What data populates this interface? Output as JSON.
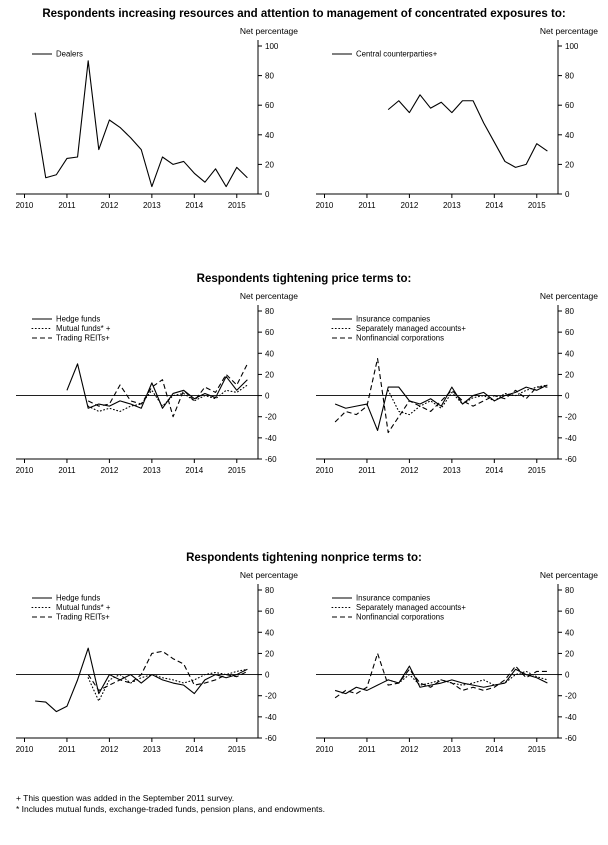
{
  "page": {
    "title1": "Respondents increasing resources and attention to management of concentrated exposures to:",
    "title2": "Respondents tightening price terms to:",
    "title3": "Respondents tightening nonprice terms to:",
    "footnote1": "+ This question was added in the September 2011 survey.",
    "footnote2": "* Includes mutual funds, exchange-traded funds, pension plans, and endowments.",
    "line_color": "#000000"
  },
  "chart_data": [
    {
      "type": "line",
      "title": "",
      "ylabel": "Net percentage",
      "ylim": [
        0,
        100
      ],
      "yticks": [
        0,
        20,
        40,
        60,
        80,
        100
      ],
      "xlim": [
        2009.8,
        2015.5
      ],
      "xticks": [
        2010,
        2011,
        2012,
        2013,
        2014,
        2015
      ],
      "zero_line": false,
      "x_step": 0.25,
      "series": [
        {
          "name": "Dealers",
          "style": "solid",
          "x_start": 2010.25,
          "values": [
            55,
            11,
            13,
            24,
            25,
            90,
            30,
            50,
            45,
            38,
            30,
            5,
            25,
            20,
            22,
            14,
            8,
            17,
            5,
            18,
            11
          ]
        }
      ]
    },
    {
      "type": "line",
      "title": "",
      "ylabel": "Net percentage",
      "ylim": [
        0,
        100
      ],
      "yticks": [
        0,
        20,
        40,
        60,
        80,
        100
      ],
      "xlim": [
        2009.8,
        2015.5
      ],
      "xticks": [
        2010,
        2011,
        2012,
        2013,
        2014,
        2015
      ],
      "zero_line": false,
      "x_step": 0.25,
      "series": [
        {
          "name": "Central counterparties+",
          "style": "solid",
          "x_start": 2011.5,
          "values": [
            57,
            63,
            55,
            67,
            58,
            62,
            55,
            63,
            63,
            48,
            35,
            22,
            18,
            20,
            34,
            29
          ]
        }
      ]
    },
    {
      "type": "line",
      "title": "",
      "ylabel": "Net percentage",
      "ylim": [
        -60,
        80
      ],
      "yticks": [
        -60,
        -40,
        -20,
        0,
        20,
        40,
        60,
        80
      ],
      "xlim": [
        2009.8,
        2015.5
      ],
      "xticks": [
        2010,
        2011,
        2012,
        2013,
        2014,
        2015
      ],
      "zero_line": true,
      "x_step": 0.25,
      "series": [
        {
          "name": "Hedge funds",
          "style": "solid",
          "x_start": 2011.0,
          "values": [
            5,
            30,
            -12,
            -8,
            -10,
            -5,
            -8,
            -12,
            12,
            -12,
            2,
            5,
            -3,
            2,
            -2,
            18,
            5,
            15
          ]
        },
        {
          "name": "Mutual funds* +",
          "style": "dotted",
          "x_start": 2011.5,
          "values": [
            -10,
            -15,
            -12,
            -15,
            -10,
            -8,
            5,
            -10,
            0,
            2,
            -5,
            0,
            -3,
            5,
            3,
            10
          ]
        },
        {
          "name": "Trading REITs+",
          "style": "dashed",
          "x_start": 2011.5,
          "values": [
            -5,
            -10,
            -8,
            10,
            -5,
            -8,
            8,
            15,
            -20,
            5,
            -5,
            8,
            3,
            20,
            10,
            30
          ]
        }
      ]
    },
    {
      "type": "line",
      "title": "",
      "ylabel": "Net percentage",
      "ylim": [
        -60,
        80
      ],
      "yticks": [
        -60,
        -40,
        -20,
        0,
        20,
        40,
        60,
        80
      ],
      "xlim": [
        2009.8,
        2015.5
      ],
      "xticks": [
        2010,
        2011,
        2012,
        2013,
        2014,
        2015
      ],
      "zero_line": true,
      "x_step": 0.25,
      "series": [
        {
          "name": "Insurance companies",
          "style": "solid",
          "x_start": 2010.25,
          "values": [
            -8,
            -12,
            -10,
            -8,
            -33,
            8,
            8,
            -5,
            -8,
            -3,
            -10,
            8,
            -8,
            0,
            3,
            -5,
            0,
            3,
            8,
            5,
            10
          ]
        },
        {
          "name": "Separately managed accounts+",
          "style": "dotted",
          "x_start": 2011.5,
          "values": [
            5,
            -15,
            -18,
            -10,
            -5,
            -12,
            3,
            -8,
            -2,
            0,
            -5,
            2,
            0,
            5,
            8,
            10
          ]
        },
        {
          "name": "Nonfinancial corporations",
          "style": "dashed",
          "x_start": 2010.25,
          "values": [
            -25,
            -15,
            -18,
            -10,
            35,
            -35,
            -20,
            -5,
            -10,
            -15,
            -5,
            5,
            -5,
            -10,
            -5,
            0,
            -3,
            5,
            -3,
            8,
            8
          ]
        }
      ]
    },
    {
      "type": "line",
      "title": "",
      "ylabel": "Net percentage",
      "ylim": [
        -60,
        80
      ],
      "yticks": [
        -60,
        -40,
        -20,
        0,
        20,
        40,
        60,
        80
      ],
      "xlim": [
        2009.8,
        2015.5
      ],
      "xticks": [
        2010,
        2011,
        2012,
        2013,
        2014,
        2015
      ],
      "zero_line": true,
      "x_step": 0.25,
      "series": [
        {
          "name": "Hedge funds",
          "style": "solid",
          "x_start": 2010.25,
          "values": [
            -25,
            -26,
            -35,
            -30,
            -5,
            25,
            -18,
            0,
            -5,
            0,
            -8,
            0,
            -5,
            -8,
            -10,
            -18,
            -5,
            0,
            -3,
            0,
            5
          ]
        },
        {
          "name": "Mutual funds* +",
          "style": "dotted",
          "x_start": 2011.5,
          "values": [
            -3,
            -25,
            -5,
            0,
            -8,
            -3,
            0,
            -3,
            -5,
            -8,
            -5,
            0,
            2,
            0,
            3,
            5
          ]
        },
        {
          "name": "Trading REITs+",
          "style": "dashed",
          "x_start": 2011.5,
          "values": [
            0,
            -15,
            -10,
            -5,
            -8,
            0,
            20,
            22,
            15,
            10,
            -10,
            -8,
            -5,
            0,
            -2,
            3
          ]
        }
      ]
    },
    {
      "type": "line",
      "title": "",
      "ylabel": "Net percentage",
      "ylim": [
        -60,
        80
      ],
      "yticks": [
        -60,
        -40,
        -20,
        0,
        20,
        40,
        60,
        80
      ],
      "xlim": [
        2009.8,
        2015.5
      ],
      "xticks": [
        2010,
        2011,
        2012,
        2013,
        2014,
        2015
      ],
      "zero_line": true,
      "x_step": 0.25,
      "series": [
        {
          "name": "Insurance companies",
          "style": "solid",
          "x_start": 2010.25,
          "values": [
            -15,
            -18,
            -12,
            -15,
            -10,
            -5,
            -8,
            8,
            -12,
            -10,
            -8,
            -5,
            -8,
            -10,
            -12,
            -10,
            -8,
            5,
            0,
            -3,
            -8
          ]
        },
        {
          "name": "Separately managed accounts+",
          "style": "dotted",
          "x_start": 2011.5,
          "values": [
            -5,
            -8,
            0,
            -10,
            -8,
            -5,
            -8,
            -10,
            -8,
            -5,
            -10,
            -8,
            0,
            3,
            -2,
            -5
          ]
        },
        {
          "name": "Nonfinancial corporations",
          "style": "dashed",
          "x_start": 2010.25,
          "values": [
            -22,
            -15,
            -18,
            -12,
            20,
            -10,
            -8,
            5,
            -8,
            -12,
            -5,
            -8,
            -15,
            -12,
            -15,
            -12,
            -5,
            8,
            -3,
            3,
            3
          ]
        }
      ]
    }
  ]
}
